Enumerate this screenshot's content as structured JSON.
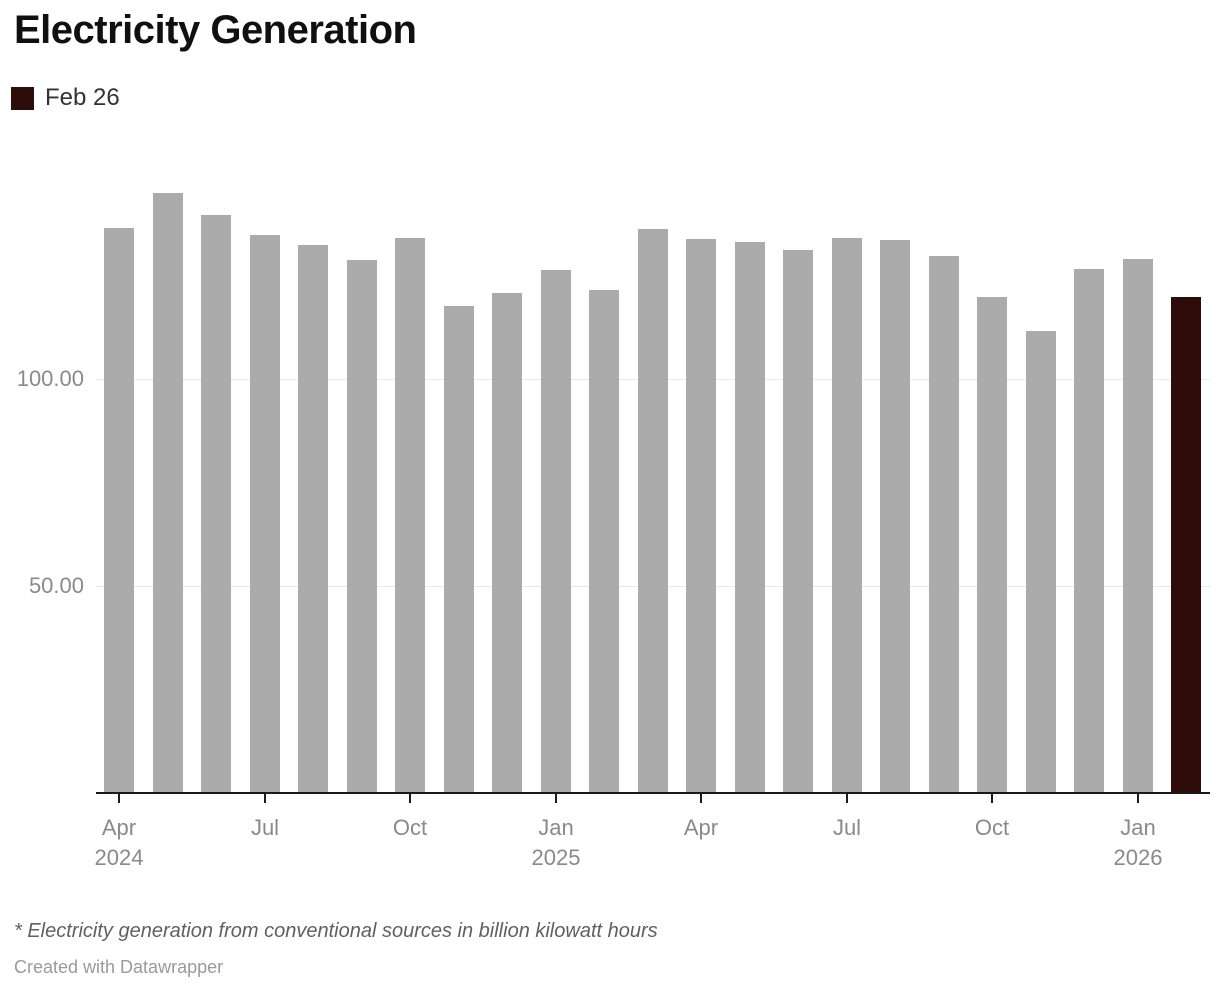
{
  "header": {
    "title": "Electricity Generation"
  },
  "legend": {
    "label": "Feb 26",
    "swatch_color": "#2e0c09"
  },
  "chart_data": {
    "type": "bar",
    "title": "Electricity Generation",
    "categories": [
      "Apr 2024",
      "May 2024",
      "Jun 2024",
      "Jul 2024",
      "Aug 2024",
      "Sep 2024",
      "Oct 2024",
      "Nov 2024",
      "Dec 2024",
      "Jan 2025",
      "Feb 2025",
      "Mar 2025",
      "Apr 2025",
      "May 2025",
      "Jun 2025",
      "Jul 2025",
      "Aug 2025",
      "Sep 2025",
      "Oct 2025",
      "Nov 2025",
      "Dec 2025",
      "Jan 2026",
      "Feb 2026"
    ],
    "values": [
      136.4,
      144.9,
      139.6,
      134.8,
      132.4,
      128.7,
      134.1,
      117.6,
      120.8,
      126.3,
      121.5,
      136.2,
      133.8,
      133.1,
      131.2,
      134.1,
      133.6,
      129.7,
      119.8,
      111.6,
      126.5,
      129.0,
      119.8
    ],
    "highlight_index": 22,
    "highlight_label": "Feb 26",
    "unit": "billion kilowatt hours",
    "xlabel": "",
    "ylabel": "",
    "ylim": [
      0,
      150
    ],
    "grid": "horizontal",
    "legend_position": "top-left",
    "y_ticks": [
      {
        "label": "100.00",
        "value": 100
      },
      {
        "label": "50.00",
        "value": 50
      }
    ],
    "x_ticks": [
      {
        "index": 0,
        "line1": "Apr",
        "line2": "2024"
      },
      {
        "index": 3,
        "line1": "Jul",
        "line2": ""
      },
      {
        "index": 6,
        "line1": "Oct",
        "line2": ""
      },
      {
        "index": 9,
        "line1": "Jan",
        "line2": "2025"
      },
      {
        "index": 12,
        "line1": "Apr",
        "line2": ""
      },
      {
        "index": 15,
        "line1": "Jul",
        "line2": ""
      },
      {
        "index": 18,
        "line1": "Oct",
        "line2": ""
      },
      {
        "index": 21,
        "line1": "Jan",
        "line2": "2026"
      }
    ],
    "colors": {
      "bar": "#ababab",
      "highlight": "#2e0c09",
      "grid": "#e9e9e9",
      "axis_text": "#8a8a8a",
      "baseline": "#1a1a1a"
    }
  },
  "footer": {
    "footnote": "* Electricity generation from conventional sources in billion kilowatt hours",
    "byline": "Created with Datawrapper"
  }
}
